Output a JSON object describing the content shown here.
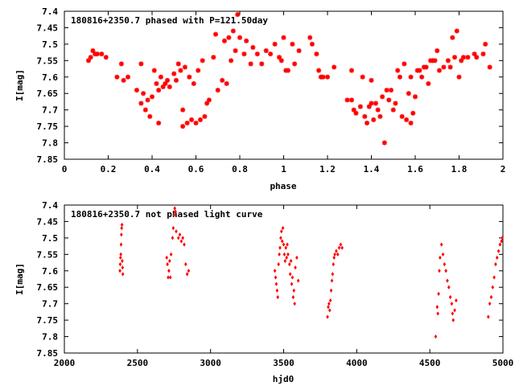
{
  "chart_data": [
    {
      "type": "scatter",
      "title": "180816+2350.7 phased with P=121.50day",
      "xlabel": "phase",
      "ylabel": "I[mag]",
      "xlim": [
        0,
        2
      ],
      "ylim": [
        7.85,
        7.4
      ],
      "y_inverted": true,
      "x_ticks": [
        "0",
        "0.2",
        "0.4",
        "0.6",
        "0.8",
        "1",
        "1.2",
        "1.4",
        "1.6",
        "1.8",
        "2"
      ],
      "x_tick_values": [
        0,
        0.2,
        0.4,
        0.6,
        0.8,
        1,
        1.2,
        1.4,
        1.6,
        1.8,
        2
      ],
      "y_ticks": [
        "7.4",
        "7.45",
        "7.5",
        "7.55",
        "7.6",
        "7.65",
        "7.7",
        "7.75",
        "7.8",
        "7.85"
      ],
      "y_tick_values": [
        7.4,
        7.45,
        7.5,
        7.55,
        7.6,
        7.65,
        7.7,
        7.75,
        7.8,
        7.85
      ],
      "marker_color": "#ff0000",
      "marker": "star",
      "points": [
        [
          0.11,
          7.55
        ],
        [
          0.12,
          7.54
        ],
        [
          0.13,
          7.52
        ],
        [
          0.14,
          7.53
        ],
        [
          0.15,
          7.53
        ],
        [
          0.17,
          7.53
        ],
        [
          0.19,
          7.54
        ],
        [
          0.24,
          7.6
        ],
        [
          0.26,
          7.56
        ],
        [
          0.27,
          7.61
        ],
        [
          0.29,
          7.6
        ],
        [
          0.33,
          7.64
        ],
        [
          0.35,
          7.56
        ],
        [
          0.35,
          7.68
        ],
        [
          0.36,
          7.65
        ],
        [
          0.37,
          7.7
        ],
        [
          0.38,
          7.67
        ],
        [
          0.39,
          7.72
        ],
        [
          0.4,
          7.66
        ],
        [
          0.41,
          7.58
        ],
        [
          0.42,
          7.62
        ],
        [
          0.43,
          7.64
        ],
        [
          0.43,
          7.74
        ],
        [
          0.44,
          7.6
        ],
        [
          0.45,
          7.63
        ],
        [
          0.46,
          7.62
        ],
        [
          0.47,
          7.61
        ],
        [
          0.48,
          7.63
        ],
        [
          0.5,
          7.59
        ],
        [
          0.51,
          7.61
        ],
        [
          0.52,
          7.56
        ],
        [
          0.53,
          7.58
        ],
        [
          0.54,
          7.7
        ],
        [
          0.54,
          7.75
        ],
        [
          0.55,
          7.57
        ],
        [
          0.56,
          7.74
        ],
        [
          0.57,
          7.6
        ],
        [
          0.58,
          7.73
        ],
        [
          0.59,
          7.62
        ],
        [
          0.6,
          7.74
        ],
        [
          0.61,
          7.58
        ],
        [
          0.62,
          7.73
        ],
        [
          0.63,
          7.55
        ],
        [
          0.64,
          7.72
        ],
        [
          0.65,
          7.68
        ],
        [
          0.66,
          7.67
        ],
        [
          0.68,
          7.54
        ],
        [
          0.69,
          7.47
        ],
        [
          0.7,
          7.64
        ],
        [
          0.72,
          7.61
        ],
        [
          0.73,
          7.49
        ],
        [
          0.74,
          7.62
        ],
        [
          0.75,
          7.48
        ],
        [
          0.76,
          7.55
        ],
        [
          0.77,
          7.46
        ],
        [
          0.78,
          7.52
        ],
        [
          0.79,
          7.41
        ],
        [
          0.8,
          7.48
        ],
        [
          0.82,
          7.53
        ],
        [
          0.83,
          7.49
        ],
        [
          0.85,
          7.56
        ],
        [
          0.86,
          7.51
        ],
        [
          0.88,
          7.53
        ],
        [
          0.9,
          7.56
        ],
        [
          0.92,
          7.52
        ],
        [
          0.94,
          7.53
        ],
        [
          0.96,
          7.5
        ],
        [
          0.98,
          7.54
        ],
        [
          0.99,
          7.55
        ],
        [
          1.0,
          7.48
        ],
        [
          1.01,
          7.58
        ],
        [
          1.02,
          7.58
        ],
        [
          1.04,
          7.5
        ],
        [
          1.05,
          7.56
        ],
        [
          1.07,
          7.52
        ],
        [
          1.12,
          7.48
        ],
        [
          1.13,
          7.5
        ],
        [
          1.15,
          7.53
        ],
        [
          1.16,
          7.58
        ],
        [
          1.17,
          7.6
        ],
        [
          1.18,
          7.6
        ],
        [
          1.2,
          7.6
        ],
        [
          1.23,
          7.57
        ],
        [
          1.29,
          7.67
        ],
        [
          1.31,
          7.67
        ],
        [
          1.31,
          7.58
        ],
        [
          1.32,
          7.7
        ],
        [
          1.33,
          7.71
        ],
        [
          1.35,
          7.69
        ],
        [
          1.36,
          7.6
        ],
        [
          1.37,
          7.72
        ],
        [
          1.38,
          7.74
        ],
        [
          1.39,
          7.69
        ],
        [
          1.4,
          7.61
        ],
        [
          1.4,
          7.68
        ],
        [
          1.41,
          7.73
        ],
        [
          1.42,
          7.68
        ],
        [
          1.43,
          7.7
        ],
        [
          1.44,
          7.72
        ],
        [
          1.45,
          7.66
        ],
        [
          1.46,
          7.8
        ],
        [
          1.47,
          7.64
        ],
        [
          1.48,
          7.67
        ],
        [
          1.49,
          7.64
        ],
        [
          1.5,
          7.7
        ],
        [
          1.51,
          7.68
        ],
        [
          1.52,
          7.58
        ],
        [
          1.53,
          7.6
        ],
        [
          1.54,
          7.72
        ],
        [
          1.55,
          7.56
        ],
        [
          1.56,
          7.73
        ],
        [
          1.57,
          7.65
        ],
        [
          1.58,
          7.6
        ],
        [
          1.58,
          7.74
        ],
        [
          1.59,
          7.71
        ],
        [
          1.6,
          7.66
        ],
        [
          1.61,
          7.58
        ],
        [
          1.62,
          7.58
        ],
        [
          1.63,
          7.6
        ],
        [
          1.64,
          7.57
        ],
        [
          1.65,
          7.57
        ],
        [
          1.66,
          7.62
        ],
        [
          1.67,
          7.55
        ],
        [
          1.68,
          7.55
        ],
        [
          1.69,
          7.55
        ],
        [
          1.7,
          7.52
        ],
        [
          1.71,
          7.58
        ],
        [
          1.73,
          7.57
        ],
        [
          1.75,
          7.55
        ],
        [
          1.76,
          7.57
        ],
        [
          1.77,
          7.48
        ],
        [
          1.78,
          7.54
        ],
        [
          1.79,
          7.46
        ],
        [
          1.8,
          7.6
        ],
        [
          1.81,
          7.55
        ],
        [
          1.82,
          7.54
        ],
        [
          1.84,
          7.54
        ],
        [
          1.87,
          7.53
        ],
        [
          1.88,
          7.54
        ],
        [
          1.91,
          7.53
        ],
        [
          1.92,
          7.5
        ],
        [
          1.94,
          7.57
        ]
      ]
    },
    {
      "type": "scatter",
      "title": "180816+2350.7 not phased light curve",
      "xlabel": "hjd0",
      "ylabel": "I[mag]",
      "xlim": [
        2000,
        5000
      ],
      "ylim": [
        7.85,
        7.4
      ],
      "y_inverted": true,
      "x_ticks": [
        "2000",
        "2500",
        "3000",
        "3500",
        "4000",
        "4500",
        "5000"
      ],
      "x_tick_values": [
        2000,
        2500,
        3000,
        3500,
        4000,
        4500,
        5000
      ],
      "y_ticks": [
        "7.4",
        "7.45",
        "7.5",
        "7.55",
        "7.6",
        "7.65",
        "7.7",
        "7.75",
        "7.8",
        "7.85"
      ],
      "y_tick_values": [
        7.4,
        7.45,
        7.5,
        7.55,
        7.6,
        7.65,
        7.7,
        7.75,
        7.8,
        7.85
      ],
      "marker_color": "#ff0000",
      "marker": "diamond",
      "points": [
        [
          2380,
          7.6
        ],
        [
          2382,
          7.58
        ],
        [
          2384,
          7.56
        ],
        [
          2386,
          7.55
        ],
        [
          2388,
          7.52
        ],
        [
          2390,
          7.49
        ],
        [
          2392,
          7.47
        ],
        [
          2394,
          7.46
        ],
        [
          2396,
          7.57
        ],
        [
          2398,
          7.59
        ],
        [
          2400,
          7.61
        ],
        [
          2700,
          7.56
        ],
        [
          2705,
          7.58
        ],
        [
          2710,
          7.62
        ],
        [
          2715,
          7.6
        ],
        [
          2720,
          7.57
        ],
        [
          2725,
          7.62
        ],
        [
          2730,
          7.55
        ],
        [
          2740,
          7.5
        ],
        [
          2745,
          7.47
        ],
        [
          2750,
          7.43
        ],
        [
          2755,
          7.41
        ],
        [
          2760,
          7.42
        ],
        [
          2765,
          7.48
        ],
        [
          2780,
          7.5
        ],
        [
          2790,
          7.49
        ],
        [
          2800,
          7.51
        ],
        [
          2810,
          7.5
        ],
        [
          2820,
          7.52
        ],
        [
          2830,
          7.58
        ],
        [
          2840,
          7.61
        ],
        [
          2850,
          7.6
        ],
        [
          3440,
          7.6
        ],
        [
          3445,
          7.62
        ],
        [
          3450,
          7.64
        ],
        [
          3455,
          7.66
        ],
        [
          3460,
          7.68
        ],
        [
          3465,
          7.58
        ],
        [
          3470,
          7.55
        ],
        [
          3475,
          7.53
        ],
        [
          3480,
          7.5
        ],
        [
          3485,
          7.48
        ],
        [
          3490,
          7.51
        ],
        [
          3495,
          7.47
        ],
        [
          3500,
          7.52
        ],
        [
          3505,
          7.55
        ],
        [
          3510,
          7.57
        ],
        [
          3515,
          7.53
        ],
        [
          3520,
          7.56
        ],
        [
          3525,
          7.52
        ],
        [
          3530,
          7.55
        ],
        [
          3540,
          7.58
        ],
        [
          3545,
          7.61
        ],
        [
          3550,
          7.57
        ],
        [
          3555,
          7.64
        ],
        [
          3560,
          7.62
        ],
        [
          3565,
          7.68
        ],
        [
          3570,
          7.66
        ],
        [
          3575,
          7.7
        ],
        [
          3580,
          7.59
        ],
        [
          3590,
          7.56
        ],
        [
          3600,
          7.63
        ],
        [
          3800,
          7.74
        ],
        [
          3805,
          7.71
        ],
        [
          3810,
          7.7
        ],
        [
          3815,
          7.72
        ],
        [
          3820,
          7.69
        ],
        [
          3825,
          7.66
        ],
        [
          3830,
          7.63
        ],
        [
          3835,
          7.61
        ],
        [
          3840,
          7.58
        ],
        [
          3845,
          7.56
        ],
        [
          3850,
          7.55
        ],
        [
          3860,
          7.54
        ],
        [
          3870,
          7.55
        ],
        [
          3880,
          7.53
        ],
        [
          3890,
          7.52
        ],
        [
          3900,
          7.53
        ],
        [
          4540,
          7.8
        ],
        [
          4550,
          7.71
        ],
        [
          4555,
          7.73
        ],
        [
          4560,
          7.67
        ],
        [
          4565,
          7.6
        ],
        [
          4570,
          7.56
        ],
        [
          4580,
          7.52
        ],
        [
          4590,
          7.55
        ],
        [
          4600,
          7.58
        ],
        [
          4610,
          7.6
        ],
        [
          4620,
          7.63
        ],
        [
          4630,
          7.65
        ],
        [
          4640,
          7.68
        ],
        [
          4650,
          7.7
        ],
        [
          4655,
          7.73
        ],
        [
          4660,
          7.75
        ],
        [
          4670,
          7.72
        ],
        [
          4680,
          7.69
        ],
        [
          4900,
          7.74
        ],
        [
          4910,
          7.7
        ],
        [
          4920,
          7.68
        ],
        [
          4930,
          7.65
        ],
        [
          4940,
          7.62
        ],
        [
          4950,
          7.58
        ],
        [
          4960,
          7.56
        ],
        [
          4970,
          7.54
        ],
        [
          4980,
          7.52
        ],
        [
          4990,
          7.51
        ],
        [
          4995,
          7.5
        ]
      ]
    }
  ]
}
